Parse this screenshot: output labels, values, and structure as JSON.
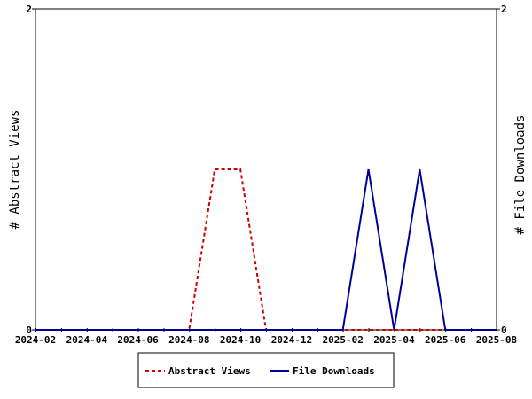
{
  "chart_data": {
    "type": "line",
    "x_type": "date",
    "x_tick_labels": [
      "2024-02",
      "2024-04",
      "2024-06",
      "2024-08",
      "2024-10",
      "2024-12",
      "2025-02",
      "2025-04",
      "2025-06",
      "2025-08"
    ],
    "xlim": [
      "2024-02",
      "2025-08"
    ],
    "x_minor_ticks": "monthly",
    "y_left": {
      "label": "# Abstract Views",
      "ylim": [
        0,
        2
      ],
      "tick_labels": [
        "0",
        "2"
      ]
    },
    "y_right": {
      "label": "# File Downloads",
      "ylim": [
        0,
        2
      ],
      "tick_labels": [
        "0",
        "2"
      ]
    },
    "grid": false,
    "legend_position": "bottom-center",
    "series": [
      {
        "name": "Abstract Views",
        "axis": "left",
        "color": "#cc0000",
        "style": "dashed",
        "x": [
          "2024-02",
          "2024-03",
          "2024-04",
          "2024-05",
          "2024-06",
          "2024-07",
          "2024-08",
          "2024-09",
          "2024-10",
          "2024-11",
          "2024-12",
          "2025-01",
          "2025-02",
          "2025-03",
          "2025-04",
          "2025-05",
          "2025-06",
          "2025-07",
          "2025-08"
        ],
        "values": [
          0,
          0,
          0,
          0,
          0,
          0,
          0,
          1,
          1,
          0,
          0,
          0,
          0,
          0,
          0,
          0,
          0,
          0,
          0
        ]
      },
      {
        "name": "File Downloads",
        "axis": "right",
        "color": "#000099",
        "style": "solid",
        "x": [
          "2024-02",
          "2024-03",
          "2024-04",
          "2024-05",
          "2024-06",
          "2024-07",
          "2024-08",
          "2024-09",
          "2024-10",
          "2024-11",
          "2024-12",
          "2025-01",
          "2025-02",
          "2025-03",
          "2025-04",
          "2025-05",
          "2025-06",
          "2025-07",
          "2025-08"
        ],
        "values": [
          0,
          0,
          0,
          0,
          0,
          0,
          0,
          0,
          0,
          0,
          0,
          0,
          0,
          1,
          0,
          1,
          0,
          0,
          0
        ]
      }
    ]
  }
}
